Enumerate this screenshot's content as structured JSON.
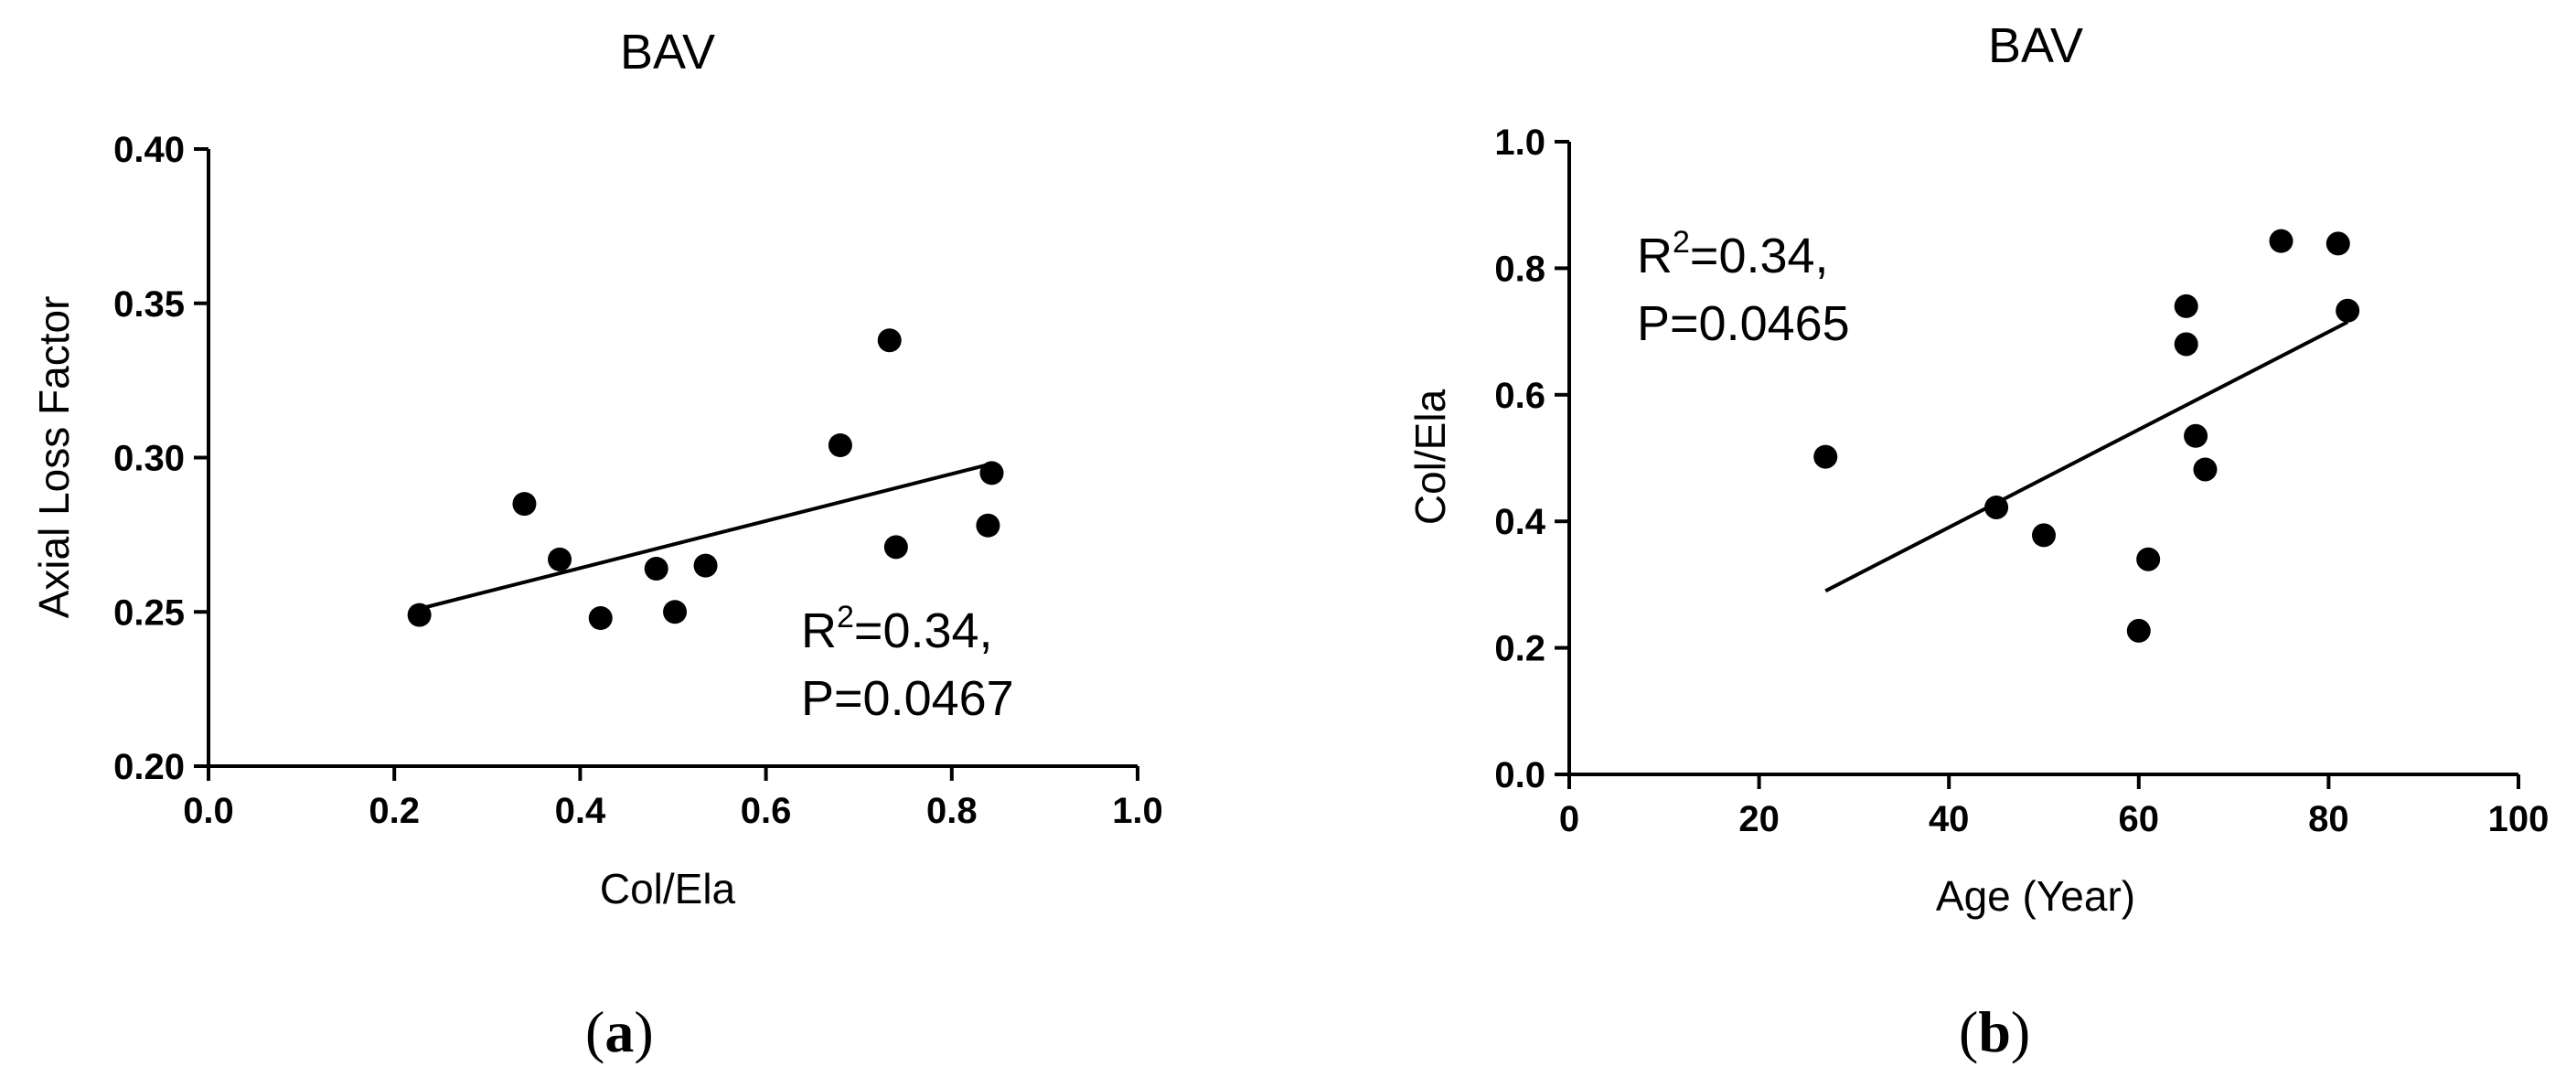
{
  "chart_data": [
    {
      "type": "scatter",
      "title": "BAV",
      "xlabel": "Col/Ela",
      "ylabel": "Axial Loss Factor",
      "xlim": [
        0.0,
        1.0
      ],
      "ylim": [
        0.2,
        0.4
      ],
      "xticks": [
        "0.0",
        "0.2",
        "0.4",
        "0.6",
        "0.8",
        "1.0"
      ],
      "yticks": [
        "0.20",
        "0.25",
        "0.30",
        "0.35",
        "0.40"
      ],
      "points": [
        {
          "x": 0.227,
          "y": 0.249
        },
        {
          "x": 0.34,
          "y": 0.285
        },
        {
          "x": 0.378,
          "y": 0.267
        },
        {
          "x": 0.422,
          "y": 0.248
        },
        {
          "x": 0.482,
          "y": 0.264
        },
        {
          "x": 0.502,
          "y": 0.25
        },
        {
          "x": 0.535,
          "y": 0.265
        },
        {
          "x": 0.68,
          "y": 0.304
        },
        {
          "x": 0.733,
          "y": 0.338
        },
        {
          "x": 0.74,
          "y": 0.271
        },
        {
          "x": 0.839,
          "y": 0.278
        },
        {
          "x": 0.843,
          "y": 0.295
        }
      ],
      "fit_line": {
        "x": [
          0.227,
          0.843
        ],
        "y": [
          0.251,
          0.298
        ]
      },
      "annotation": {
        "r2_base": "R",
        "r2_sup": "2",
        "r2_value": "=0.34,",
        "p_value": "P=0.0467"
      },
      "grid": false,
      "panel_label": {
        "open": "(",
        "letter": "a",
        "close": ")"
      }
    },
    {
      "type": "scatter",
      "title": "BAV",
      "xlabel": "Age (Year)",
      "ylabel": "Col/Ela",
      "xlim": [
        0,
        100
      ],
      "ylim": [
        0.0,
        1.0
      ],
      "xticks": [
        "0",
        "20",
        "40",
        "60",
        "80",
        "100"
      ],
      "yticks": [
        "0.0",
        "0.2",
        "0.4",
        "0.6",
        "0.8",
        "1.0"
      ],
      "points": [
        {
          "x": 27,
          "y": 0.502
        },
        {
          "x": 45,
          "y": 0.422
        },
        {
          "x": 50,
          "y": 0.378
        },
        {
          "x": 60,
          "y": 0.227
        },
        {
          "x": 61,
          "y": 0.34
        },
        {
          "x": 65,
          "y": 0.74
        },
        {
          "x": 65,
          "y": 0.68
        },
        {
          "x": 66,
          "y": 0.535
        },
        {
          "x": 67,
          "y": 0.482
        },
        {
          "x": 75,
          "y": 0.843
        },
        {
          "x": 81,
          "y": 0.839
        },
        {
          "x": 82,
          "y": 0.733
        }
      ],
      "fit_line": {
        "x": [
          27,
          82
        ],
        "y": [
          0.29,
          0.715
        ]
      },
      "annotation": {
        "r2_base": "R",
        "r2_sup": "2",
        "r2_value": "=0.34,",
        "p_value": "P=0.0465"
      },
      "grid": false,
      "panel_label": {
        "open": "(",
        "letter": "b",
        "close": ")"
      }
    }
  ]
}
